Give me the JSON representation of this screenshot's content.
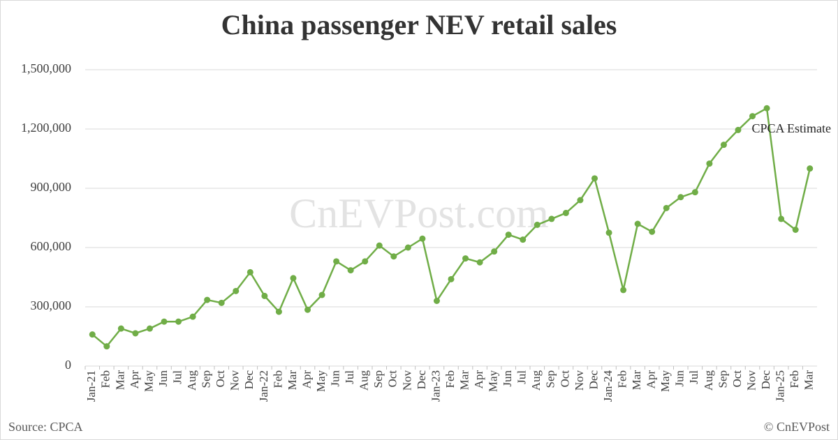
{
  "chart_data": {
    "type": "line",
    "title": "China passenger NEV retail sales",
    "categories": [
      "Jan-21",
      "Feb",
      "Mar",
      "Apr",
      "May",
      "Jun",
      "Jul",
      "Aug",
      "Sep",
      "Oct",
      "Nov",
      "Dec",
      "Jan-22",
      "Feb",
      "Mar",
      "Apr",
      "May",
      "Jun",
      "Jul",
      "Aug",
      "Sep",
      "Oct",
      "Nov",
      "Dec",
      "Jan-23",
      "Feb",
      "Mar",
      "Apr",
      "May",
      "Jun",
      "Jul",
      "Aug",
      "Sep",
      "Oct",
      "Nov",
      "Dec",
      "Jan-24",
      "Feb",
      "Mar",
      "Apr",
      "May",
      "Jun",
      "Jul",
      "Aug",
      "Sep",
      "Oct",
      "Nov",
      "Dec",
      "Jan-25",
      "Feb",
      "Mar"
    ],
    "values": [
      160000,
      100000,
      190000,
      166000,
      190000,
      225000,
      225000,
      250000,
      335000,
      320000,
      380000,
      475000,
      355000,
      275000,
      445000,
      285000,
      360000,
      530000,
      485000,
      530000,
      610000,
      555000,
      600000,
      645000,
      330000,
      440000,
      545000,
      525000,
      580000,
      665000,
      640000,
      715000,
      745000,
      775000,
      840000,
      950000,
      675000,
      385000,
      720000,
      680000,
      800000,
      855000,
      880000,
      1025000,
      1120000,
      1195000,
      1265000,
      1305000,
      745000,
      690000,
      1000000
    ],
    "color": "#70ad47",
    "ylim": [
      0,
      1500000
    ],
    "yticks": [
      0,
      {
        "value": 300000,
        "label": "300,000"
      },
      {
        "value": 600000,
        "label": "600,000"
      },
      {
        "value": 900000,
        "label": "900,000"
      },
      {
        "value": 1200000,
        "label": "1,200,000"
      },
      {
        "value": 1500000,
        "label": "1,500,000"
      }
    ],
    "grid": true,
    "annotation": "CPCA Estimate",
    "watermark": "CnEVPost.com",
    "source": "Source: CPCA",
    "copyright": "© CnEVPost"
  }
}
